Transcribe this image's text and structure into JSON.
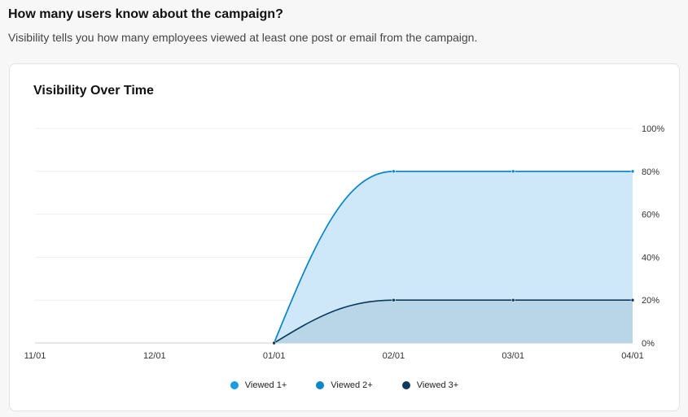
{
  "page": {
    "heading": "How many users know about the campaign?",
    "subheading": "Visibility tells you how many employees viewed at least one post or email from the campaign."
  },
  "chart_data": {
    "type": "area",
    "title": "Visibility Over Time",
    "x": [
      "11/01",
      "12/01",
      "01/01",
      "02/01",
      "03/01",
      "04/01"
    ],
    "ylim": [
      0,
      100
    ],
    "yticks": [
      "0%",
      "20%",
      "40%",
      "60%",
      "80%",
      "100%"
    ],
    "grid": true,
    "legend_position": "bottom-center",
    "series": [
      {
        "name": "Viewed 1+",
        "color": "#1a9be6",
        "values": [
          null,
          null,
          0,
          80,
          80,
          80
        ]
      },
      {
        "name": "Viewed 2+",
        "color": "#0a86c9",
        "values": [
          null,
          null,
          0,
          80,
          80,
          80
        ]
      },
      {
        "name": "Viewed 3+",
        "color": "#0d3a5c",
        "values": [
          null,
          null,
          0,
          20,
          20,
          20
        ]
      }
    ]
  }
}
